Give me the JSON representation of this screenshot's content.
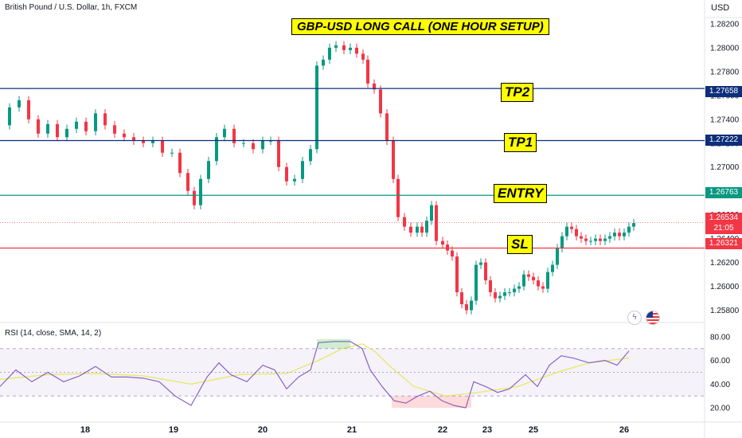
{
  "chart_header": {
    "symbol": "British Pound / U.S. Dollar, 1h, FXCM",
    "currency": "USD",
    "rsi_legend": "RSI (14, close, SMA, 14, 2)"
  },
  "annotations": {
    "title": "GBP-USD LONG CALL (ONE HOUR SETUP)",
    "tp2": "TP2",
    "tp1": "TP1",
    "entry": "ENTRY",
    "sl": "SL"
  },
  "price_tags": {
    "tp2": "1.27658",
    "tp1": "1.27222",
    "entry": "1.26763",
    "current": "1.26534",
    "countdown": "21:05",
    "sl": "1.26321"
  },
  "icons": [
    "lightning-icon",
    "us-flag-icon"
  ],
  "colors": {
    "up": "#089981",
    "down": "#f23645",
    "tp_line": "#0d2e7a",
    "entry_line": "#089981",
    "sl_line": "#f23645",
    "rsi_line": "#7e57c2",
    "rsi_ma": "#e8e85a",
    "label_bg": "#ffff00"
  },
  "chart_data": {
    "type": "candlestick",
    "x_ticks": [
      "18",
      "19",
      "20",
      "21",
      "22",
      "23",
      "25",
      "26"
    ],
    "y_ticks": [
      "1.28200",
      "1.28000",
      "1.27800",
      "1.27600",
      "1.27400",
      "1.27200",
      "1.27000",
      "1.26800",
      "1.26600",
      "1.26400",
      "1.26200",
      "1.26000",
      "1.25800"
    ],
    "ylim": [
      1.2571,
      1.284
    ],
    "levels": [
      {
        "name": "TP2",
        "value": 1.27658
      },
      {
        "name": "TP1",
        "value": 1.27222
      },
      {
        "name": "ENTRY",
        "value": 1.26763
      },
      {
        "name": "current",
        "value": 1.26534
      },
      {
        "name": "SL",
        "value": 1.26321
      }
    ],
    "close_path": [
      [
        0,
        1.2735
      ],
      [
        12,
        1.275
      ],
      [
        24,
        1.2756
      ],
      [
        36,
        1.274
      ],
      [
        48,
        1.2728
      ],
      [
        60,
        1.2736
      ],
      [
        72,
        1.2725
      ],
      [
        84,
        1.2732
      ],
      [
        96,
        1.2738
      ],
      [
        108,
        1.273
      ],
      [
        120,
        1.2745
      ],
      [
        132,
        1.2735
      ],
      [
        144,
        1.2728
      ],
      [
        156,
        1.2725
      ],
      [
        168,
        1.2722
      ],
      [
        180,
        1.272
      ],
      [
        192,
        1.2722
      ],
      [
        204,
        1.2712
      ],
      [
        216,
        1.2712
      ],
      [
        226,
        1.2695
      ],
      [
        236,
        1.268
      ],
      [
        244,
        1.2668
      ],
      [
        252,
        1.269
      ],
      [
        262,
        1.2705
      ],
      [
        272,
        1.2725
      ],
      [
        282,
        1.2732
      ],
      [
        294,
        1.272
      ],
      [
        306,
        1.272
      ],
      [
        318,
        1.2715
      ],
      [
        330,
        1.2722
      ],
      [
        340,
        1.2722
      ],
      [
        350,
        1.27
      ],
      [
        360,
        1.2688
      ],
      [
        370,
        1.269
      ],
      [
        380,
        1.2705
      ],
      [
        390,
        1.2715
      ],
      [
        398,
        1.2785
      ],
      [
        406,
        1.279
      ],
      [
        414,
        1.28
      ],
      [
        422,
        1.2802
      ],
      [
        432,
        1.2798
      ],
      [
        440,
        1.28
      ],
      [
        448,
        1.2795
      ],
      [
        456,
        1.279
      ],
      [
        462,
        1.277
      ],
      [
        470,
        1.2765
      ],
      [
        478,
        1.2745
      ],
      [
        486,
        1.2722
      ],
      [
        494,
        1.269
      ],
      [
        500,
        1.2658
      ],
      [
        508,
        1.265
      ],
      [
        516,
        1.2645
      ],
      [
        524,
        1.265
      ],
      [
        530,
        1.2645
      ],
      [
        536,
        1.2655
      ],
      [
        542,
        1.2668
      ],
      [
        548,
        1.2638
      ],
      [
        556,
        1.2635
      ],
      [
        562,
        1.263
      ],
      [
        568,
        1.2625
      ],
      [
        574,
        1.2595
      ],
      [
        580,
        1.2585
      ],
      [
        586,
        1.258
      ],
      [
        592,
        1.2588
      ],
      [
        598,
        1.2618
      ],
      [
        604,
        1.262
      ],
      [
        610,
        1.2605
      ],
      [
        616,
        1.2595
      ],
      [
        622,
        1.259
      ],
      [
        628,
        1.2592
      ],
      [
        634,
        1.2595
      ],
      [
        640,
        1.2595
      ],
      [
        646,
        1.2598
      ],
      [
        652,
        1.26
      ],
      [
        658,
        1.261
      ],
      [
        664,
        1.2608
      ],
      [
        670,
        1.2605
      ],
      [
        676,
        1.26
      ],
      [
        682,
        1.2598
      ],
      [
        688,
        1.2612
      ],
      [
        694,
        1.2618
      ],
      [
        700,
        1.2632
      ],
      [
        706,
        1.2642
      ],
      [
        712,
        1.265
      ],
      [
        718,
        1.2648
      ],
      [
        724,
        1.2642
      ],
      [
        730,
        1.264
      ],
      [
        736,
        1.2638
      ],
      [
        742,
        1.2638
      ],
      [
        748,
        1.264
      ],
      [
        754,
        1.2638
      ],
      [
        760,
        1.264
      ],
      [
        766,
        1.2642
      ],
      [
        772,
        1.2645
      ],
      [
        778,
        1.2642
      ],
      [
        784,
        1.2645
      ],
      [
        790,
        1.265
      ],
      [
        796,
        1.2653
      ]
    ],
    "rsi": {
      "ylim": [
        10,
        90
      ],
      "y_ticks": [
        "80.00",
        "60.00",
        "40.00",
        "20.00"
      ],
      "bands": [
        70,
        50,
        30
      ],
      "values": [
        [
          0,
          38
        ],
        [
          20,
          52
        ],
        [
          40,
          42
        ],
        [
          60,
          50
        ],
        [
          80,
          42
        ],
        [
          100,
          47
        ],
        [
          120,
          55
        ],
        [
          140,
          46
        ],
        [
          160,
          46
        ],
        [
          180,
          45
        ],
        [
          200,
          42
        ],
        [
          220,
          30
        ],
        [
          240,
          22
        ],
        [
          260,
          46
        ],
        [
          275,
          58
        ],
        [
          290,
          48
        ],
        [
          310,
          42
        ],
        [
          330,
          56
        ],
        [
          345,
          52
        ],
        [
          360,
          36
        ],
        [
          375,
          46
        ],
        [
          390,
          52
        ],
        [
          400,
          75
        ],
        [
          420,
          76
        ],
        [
          440,
          76
        ],
        [
          455,
          70
        ],
        [
          465,
          52
        ],
        [
          480,
          38
        ],
        [
          495,
          26
        ],
        [
          510,
          24
        ],
        [
          525,
          30
        ],
        [
          540,
          34
        ],
        [
          555,
          26
        ],
        [
          570,
          22
        ],
        [
          585,
          20
        ],
        [
          595,
          42
        ],
        [
          610,
          38
        ],
        [
          625,
          33
        ],
        [
          640,
          36
        ],
        [
          660,
          48
        ],
        [
          675,
          38
        ],
        [
          690,
          56
        ],
        [
          705,
          64
        ],
        [
          720,
          62
        ],
        [
          740,
          58
        ],
        [
          760,
          60
        ],
        [
          775,
          56
        ],
        [
          790,
          68
        ]
      ],
      "ma": [
        [
          0,
          44
        ],
        [
          60,
          48
        ],
        [
          120,
          49
        ],
        [
          180,
          47
        ],
        [
          240,
          40
        ],
        [
          300,
          48
        ],
        [
          360,
          49
        ],
        [
          400,
          60
        ],
        [
          430,
          70
        ],
        [
          455,
          74
        ],
        [
          470,
          68
        ],
        [
          490,
          55
        ],
        [
          520,
          38
        ],
        [
          560,
          30
        ],
        [
          600,
          33
        ],
        [
          650,
          38
        ],
        [
          700,
          50
        ],
        [
          740,
          58
        ],
        [
          790,
          62
        ]
      ]
    }
  }
}
